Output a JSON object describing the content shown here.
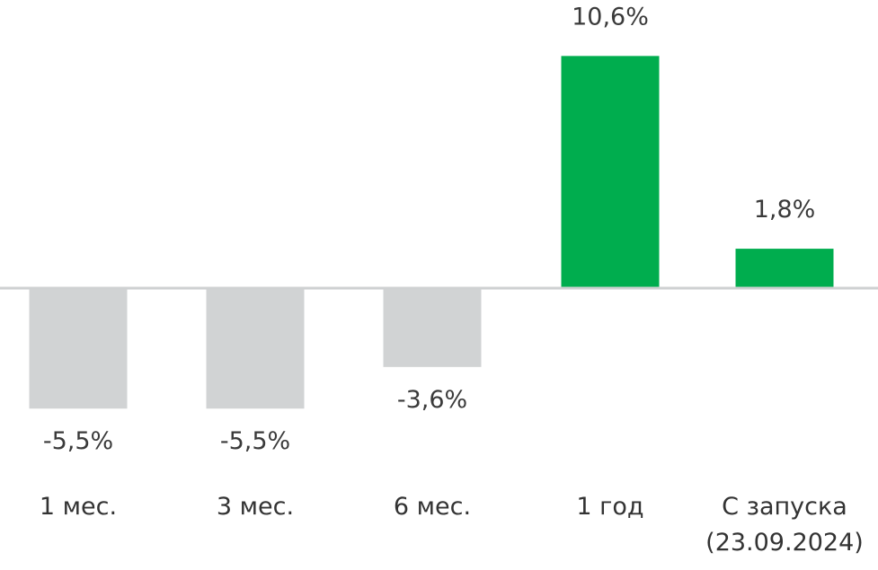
{
  "chart_data": {
    "type": "bar",
    "categories": [
      [
        "1 мес."
      ],
      [
        "3 мес."
      ],
      [
        "6 мес."
      ],
      [
        "1 год"
      ],
      [
        "С запуска",
        "(23.09.2024)"
      ]
    ],
    "values": [
      -5.5,
      -5.5,
      -3.6,
      10.6,
      1.8
    ],
    "value_labels": [
      "-5,5%",
      "-5,5%",
      "-3,6%",
      "10,6%",
      "1,8%"
    ],
    "title": "",
    "xlabel": "",
    "ylabel": "",
    "ylim": [
      -6.2,
      10.6
    ],
    "grid": false,
    "legend": "none",
    "colors": {
      "positive": "#00ad4e",
      "negative": "#d1d3d4",
      "baseline": "#cfd1d2",
      "text": "#3a3a3a"
    }
  }
}
